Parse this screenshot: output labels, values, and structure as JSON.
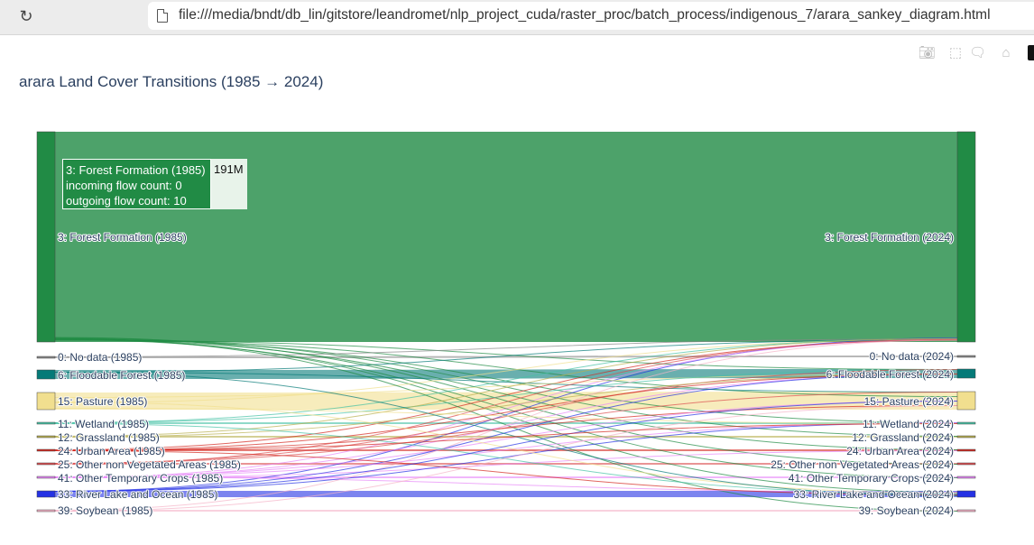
{
  "browser": {
    "url": "file:///media/bndt/db_lin/gitstore/leandromet/nlp_project_cuda/raster_proc/batch_process/indigenous_7/arara_sankey_diagram.html"
  },
  "modebar": {
    "icons": [
      "camera-icon",
      "box-select-icon",
      "lasso-icon",
      "home-icon"
    ]
  },
  "title": "arara Land Cover Transitions (1985 → 2024)",
  "tooltip": {
    "line1": "3: Forest Formation (1985)",
    "line2": "incoming flow count: 0",
    "line3": "outgoing flow count: 10",
    "value": "191M"
  },
  "chart_data": {
    "type": "sankey",
    "nodes_left": [
      {
        "label": "3: Forest Formation (1985)",
        "color": "#218b45"
      },
      {
        "label": "0: No data (1985)",
        "color": "#888888"
      },
      {
        "label": "6: Floodable Forest (1985)",
        "color": "#057a78"
      },
      {
        "label": "15: Pasture (1985)",
        "color": "#f1df8f"
      },
      {
        "label": "11: Wetland (1985)",
        "color": "#45c2a5"
      },
      {
        "label": "12: Grassland (1985)",
        "color": "#b8af4f"
      },
      {
        "label": "24: Urban Area (1985)",
        "color": "#d4271e"
      },
      {
        "label": "25: Other non Vegetated Areas (1985)",
        "color": "#db4d4f"
      },
      {
        "label": "41: Other Temporary Crops (1985)",
        "color": "#e787f8"
      },
      {
        "label": "33: River Lake and Ocean (1985)",
        "color": "#2532e4"
      },
      {
        "label": "39: Soybean (1985)",
        "color": "#f5b3c8"
      }
    ],
    "nodes_right": [
      {
        "label": "3: Forest Formation (2024)",
        "color": "#218b45"
      },
      {
        "label": "0: No data (2024)",
        "color": "#888888"
      },
      {
        "label": "6: Floodable Forest (2024)",
        "color": "#057a78"
      },
      {
        "label": "15: Pasture (2024)",
        "color": "#f1df8f"
      },
      {
        "label": "11: Wetland (2024)",
        "color": "#45c2a5"
      },
      {
        "label": "12: Grassland (2024)",
        "color": "#b8af4f"
      },
      {
        "label": "24: Urban Area (2024)",
        "color": "#d4271e"
      },
      {
        "label": "25: Other non Vegetated Areas (2024)",
        "color": "#db4d4f"
      },
      {
        "label": "41: Other Temporary Crops (2024)",
        "color": "#e787f8"
      },
      {
        "label": "33: River Lake and Ocean (2024)",
        "color": "#2532e4"
      },
      {
        "label": "39: Soybean (2024)",
        "color": "#f5b3c8"
      }
    ]
  }
}
